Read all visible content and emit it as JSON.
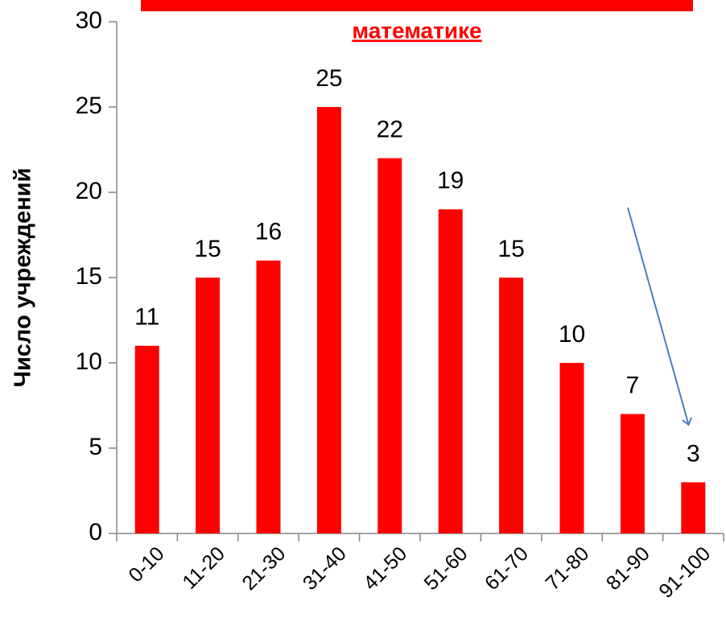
{
  "chart_data": {
    "type": "bar",
    "title": "математике",
    "y_label": "Число  учреждений",
    "categories": [
      "0-10",
      "11-20",
      "21-30",
      "31-40",
      "41-50",
      "51-60",
      "61-70",
      "71-80",
      "81-90",
      "91-100"
    ],
    "values": [
      11,
      15,
      16,
      25,
      22,
      19,
      15,
      10,
      7,
      3
    ],
    "color": "#ff0000",
    "ylim": [
      0,
      30
    ],
    "yticks": [
      0,
      5,
      10,
      15,
      20,
      25,
      30
    ]
  }
}
